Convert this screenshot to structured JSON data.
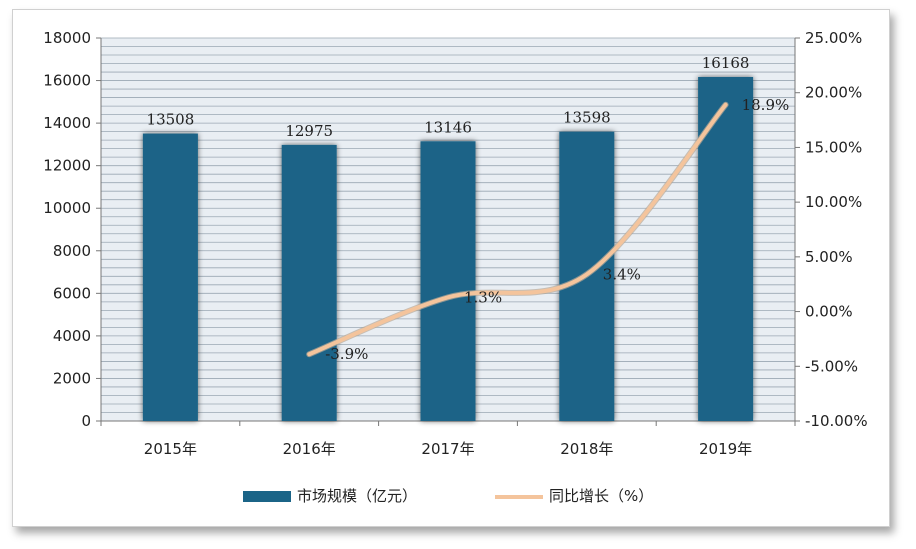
{
  "chart_data": {
    "type": "bar",
    "categories": [
      "2015年",
      "2016年",
      "2017年",
      "2018年",
      "2019年"
    ],
    "series": [
      {
        "name": "市场规模（亿元）",
        "type": "bar",
        "axis": "left",
        "values": [
          13508,
          12975,
          13146,
          13598,
          16168
        ],
        "labels": [
          "13508",
          "12975",
          "13146",
          "13598",
          "16168"
        ]
      },
      {
        "name": "同比增长（%）",
        "type": "line",
        "axis": "right",
        "values": [
          null,
          -3.9,
          1.3,
          3.4,
          18.9
        ],
        "labels": [
          "",
          "-3.9%",
          "1.3%",
          "3.4%",
          "18.9%"
        ]
      }
    ],
    "y_left": {
      "lim": [
        0,
        18000
      ],
      "ticks": [
        "0",
        "2000",
        "4000",
        "6000",
        "8000",
        "10000",
        "12000",
        "14000",
        "16000",
        "18000"
      ]
    },
    "y_right": {
      "lim": [
        -10,
        25
      ],
      "ticks": [
        "-10.00%",
        "-5.00%",
        "0.00%",
        "5.00%",
        "10.00%",
        "15.00%",
        "20.00%",
        "25.00%"
      ]
    },
    "legend_position": "bottom",
    "colors": {
      "bar": "#1b6487",
      "line": "#f4c49c",
      "grid": "#9aa7b3",
      "plot_bg": "#e9eef3"
    }
  }
}
